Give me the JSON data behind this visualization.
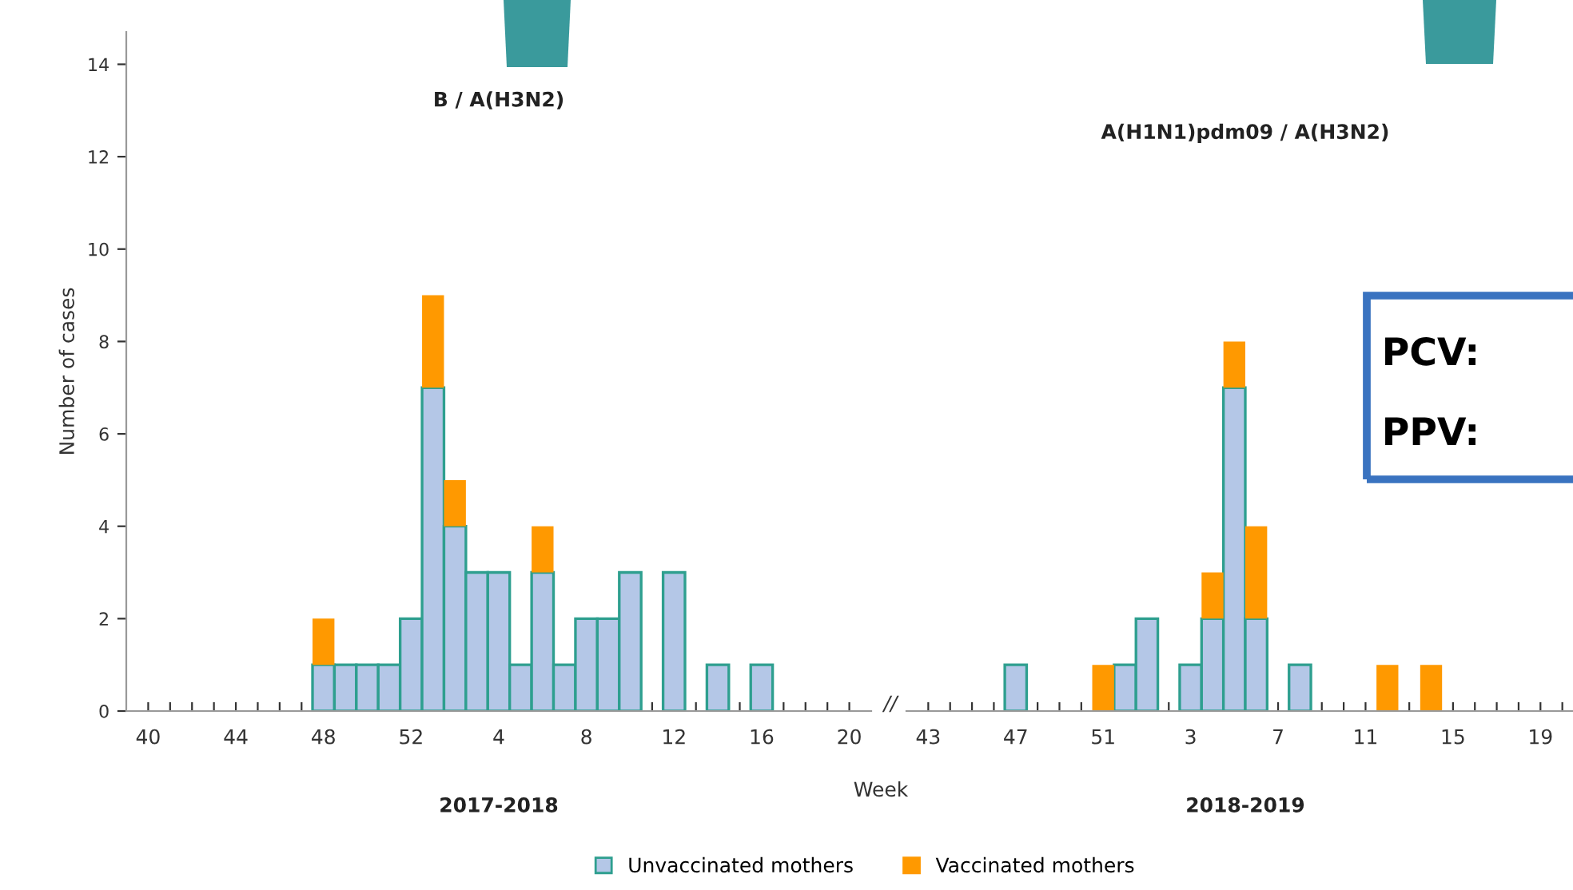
{
  "chart_data": [
    {
      "type": "bar",
      "title": "B / A(H3N2)",
      "xlabel": "2017-2018",
      "ylabel": "Number of cases",
      "stacked": true,
      "legend": "bottom",
      "ylim": [
        0,
        14.7
      ],
      "yticks": [
        0,
        2,
        4,
        6,
        8,
        10,
        12,
        14
      ],
      "categories": [
        "40",
        null,
        null,
        null,
        "44",
        null,
        null,
        null,
        "48",
        null,
        null,
        null,
        "52",
        null,
        null,
        null,
        "4",
        null,
        null,
        null,
        "8",
        null,
        null,
        null,
        "12",
        null,
        null,
        null,
        "16",
        null,
        null,
        null,
        "20"
      ],
      "series": [
        {
          "name": "Unvaccinated mothers",
          "color": "#b4c7e7",
          "values": [
            null,
            null,
            null,
            null,
            null,
            null,
            null,
            null,
            1,
            1,
            1,
            1,
            2,
            7,
            4,
            3,
            3,
            1,
            3,
            1,
            2,
            2,
            3,
            null,
            3,
            null,
            1,
            null,
            1,
            null,
            null,
            null,
            null
          ]
        },
        {
          "name": "Vaccinated mothers",
          "color": "#ff9900",
          "values": [
            null,
            null,
            null,
            null,
            null,
            null,
            null,
            null,
            1,
            null,
            null,
            null,
            null,
            2,
            1,
            null,
            null,
            null,
            1,
            null,
            null,
            null,
            null,
            null,
            null,
            null,
            null,
            null,
            null,
            null,
            null,
            null,
            null
          ]
        }
      ],
      "annotations": [
        "Week"
      ]
    },
    {
      "type": "bar",
      "title": "A(H1N1)pdm09 / A(H3N2)",
      "xlabel": "2018-2019",
      "stacked": true,
      "tick_labels": "x",
      "ylim": [
        0,
        14
      ],
      "yticks": [
        0,
        2,
        4,
        6,
        8,
        10,
        12,
        14
      ],
      "categories": [
        "43",
        null,
        null,
        null,
        "47",
        null,
        null,
        null,
        "51",
        null,
        null,
        null,
        "3",
        null,
        null,
        null,
        "7",
        null,
        null,
        null,
        "11",
        null,
        null,
        null,
        "15",
        null,
        null,
        null,
        "19",
        null
      ],
      "series": [
        {
          "color": "#b4c7e7",
          "values": [
            null,
            null,
            null,
            null,
            1,
            null,
            null,
            null,
            null,
            1,
            2,
            null,
            1,
            2,
            7,
            2,
            null,
            1,
            null,
            null,
            null,
            null,
            null,
            null,
            null,
            null,
            null,
            null,
            null,
            null
          ]
        },
        {
          "color": "#ff9900",
          "values": [
            null,
            null,
            null,
            null,
            null,
            null,
            null,
            null,
            1,
            null,
            null,
            null,
            null,
            1,
            1,
            2,
            null,
            null,
            null,
            null,
            null,
            1,
            null,
            1,
            null,
            null,
            null,
            null,
            null,
            null
          ]
        }
      ],
      "annotations": [
        "//",
        "PCV:",
        "PPV:"
      ]
    }
  ]
}
